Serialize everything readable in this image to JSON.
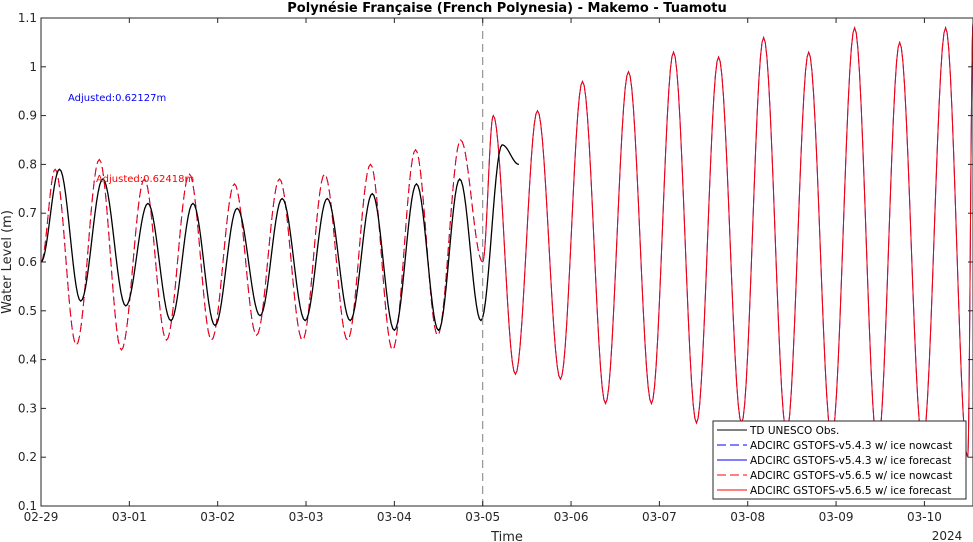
{
  "chart_data": {
    "type": "line",
    "title": "Polynésie Française (French Polynesia) - Makemo - Tuamotu",
    "xlabel": "Time",
    "ylabel": "Water Level (m)",
    "x_range_days": [
      0,
      10.55
    ],
    "ylim": [
      0.1,
      1.1
    ],
    "yticks": [
      "0.1",
      "0.2",
      "0.3",
      "0.4",
      "0.5",
      "0.6",
      "0.7",
      "0.8",
      "0.9",
      "1",
      "1.1"
    ],
    "xticks": [
      "02-29",
      "03-01",
      "03-02",
      "03-03",
      "03-04",
      "03-05",
      "03-06",
      "03-07",
      "03-08",
      "03-09",
      "03-10"
    ],
    "x_year_label": "2024",
    "nowcast_forecast_boundary": "03-05",
    "annotations": [
      {
        "text": "Adjusted:0.62127m",
        "color": "#0000ff"
      },
      {
        "text": "Adjusted:0.62418m",
        "color": "#ff0000"
      }
    ],
    "series": [
      {
        "name": "TD UNESCO Obs.",
        "color": "#000000",
        "style": "solid",
        "x": [
          0.0,
          0.21,
          0.45,
          0.7,
          0.96,
          1.21,
          1.47,
          1.72,
          1.97,
          2.22,
          2.48,
          2.73,
          2.99,
          3.24,
          3.5,
          3.75,
          4.0,
          4.25,
          4.5,
          4.74,
          4.98,
          5.22,
          5.41
        ],
        "y": [
          0.6,
          0.79,
          0.52,
          0.77,
          0.51,
          0.72,
          0.48,
          0.72,
          0.47,
          0.71,
          0.49,
          0.73,
          0.48,
          0.73,
          0.48,
          0.74,
          0.46,
          0.76,
          0.46,
          0.77,
          0.48,
          0.84,
          0.8
        ]
      },
      {
        "name": "ADCIRC GSTOFS-v5.4.3 w/ ice nowcast",
        "color": "#0000ff",
        "style": "dashed",
        "x": [
          0.0,
          0.16,
          0.4,
          0.66,
          0.91,
          1.17,
          1.42,
          1.68,
          1.93,
          2.19,
          2.44,
          2.7,
          2.96,
          3.21,
          3.47,
          3.73,
          3.98,
          4.24,
          4.49,
          4.75,
          5.0
        ],
        "y": [
          0.6,
          0.79,
          0.43,
          0.81,
          0.42,
          0.77,
          0.44,
          0.78,
          0.44,
          0.76,
          0.45,
          0.77,
          0.44,
          0.78,
          0.44,
          0.8,
          0.42,
          0.83,
          0.45,
          0.85,
          0.6
        ]
      },
      {
        "name": "ADCIRC GSTOFS-v5.4.3 w/ ice forecast",
        "color": "#0000ff",
        "style": "solid",
        "x": [
          5.0,
          5.12,
          5.37,
          5.62,
          5.88,
          6.13,
          6.39,
          6.65,
          6.91,
          7.16,
          7.42,
          7.67,
          7.93,
          8.18,
          8.44,
          8.69,
          8.95,
          9.21,
          9.47,
          9.72,
          9.98,
          10.24,
          10.49,
          10.55
        ],
        "y": [
          0.6,
          0.9,
          0.37,
          0.91,
          0.36,
          0.97,
          0.31,
          0.99,
          0.31,
          1.03,
          0.27,
          1.02,
          0.27,
          1.06,
          0.25,
          1.03,
          0.24,
          1.08,
          0.22,
          1.05,
          0.23,
          1.08,
          0.2,
          1.09
        ]
      },
      {
        "name": "ADCIRC GSTOFS-v5.6.5 w/ ice nowcast",
        "color": "#ff0000",
        "style": "dashed",
        "x": [
          0.0,
          0.16,
          0.4,
          0.66,
          0.91,
          1.17,
          1.42,
          1.68,
          1.93,
          2.19,
          2.44,
          2.7,
          2.96,
          3.21,
          3.47,
          3.73,
          3.98,
          4.24,
          4.49,
          4.75,
          5.0
        ],
        "y": [
          0.6,
          0.79,
          0.43,
          0.81,
          0.42,
          0.77,
          0.44,
          0.78,
          0.44,
          0.76,
          0.45,
          0.77,
          0.44,
          0.78,
          0.44,
          0.8,
          0.42,
          0.83,
          0.45,
          0.85,
          0.6
        ]
      },
      {
        "name": "ADCIRC GSTOFS-v5.6.5 w/ ice forecast",
        "color": "#ff0000",
        "style": "solid",
        "x": [
          5.0,
          5.12,
          5.37,
          5.62,
          5.88,
          6.13,
          6.39,
          6.65,
          6.91,
          7.16,
          7.42,
          7.67,
          7.93,
          8.18,
          8.44,
          8.69,
          8.95,
          9.21,
          9.47,
          9.72,
          9.98,
          10.24,
          10.49,
          10.55
        ],
        "y": [
          0.6,
          0.9,
          0.37,
          0.91,
          0.36,
          0.97,
          0.31,
          0.99,
          0.31,
          1.03,
          0.27,
          1.02,
          0.27,
          1.06,
          0.25,
          1.03,
          0.24,
          1.08,
          0.22,
          1.05,
          0.23,
          1.08,
          0.2,
          1.09
        ]
      }
    ],
    "legend_placement": "bottom-right",
    "grid": false
  }
}
